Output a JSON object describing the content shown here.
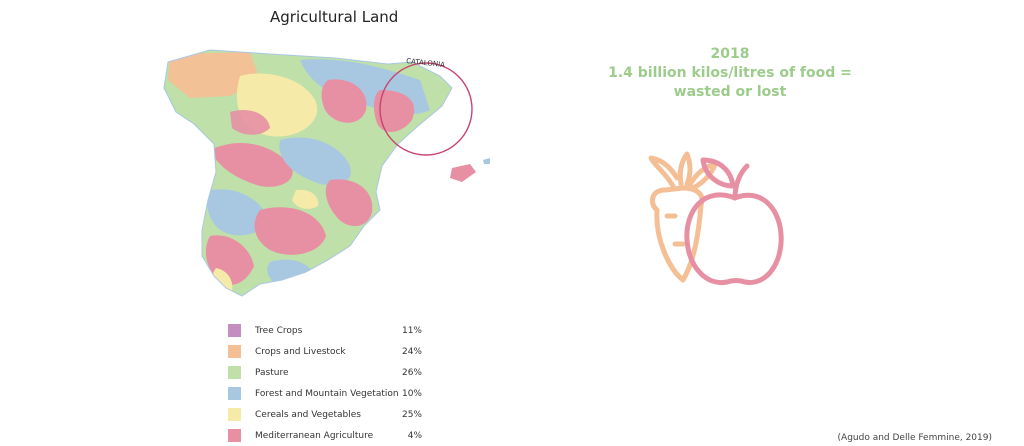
{
  "map": {
    "title": "Agricultural Land",
    "region_label": "CATALONIA"
  },
  "headline": {
    "year": "2018",
    "line1": "1.4 billion kilos/litres of food =",
    "line2": "wasted or lost",
    "color": "#9ccc8c"
  },
  "icons": [
    "carrot-icon",
    "apple-icon"
  ],
  "legend": [
    {
      "label": "Tree Crops",
      "value": "11%",
      "color": "#c48fc0"
    },
    {
      "label": "Crops and Livestock",
      "value": "24%",
      "color": "#f4bf95"
    },
    {
      "label": "Pasture",
      "value": "26%",
      "color": "#bfe0a8"
    },
    {
      "label": "Forest and Mountain Vegetation",
      "value": "10%",
      "color": "#a8c8e2"
    },
    {
      "label": "Cereals and Vegetables",
      "value": "25%",
      "color": "#f6eaa8"
    },
    {
      "label": "Mediterranean Agriculture",
      "value": "4%",
      "color": "#e790a4"
    }
  ],
  "source": "(Agudo and Delle Femmine, 2019)"
}
